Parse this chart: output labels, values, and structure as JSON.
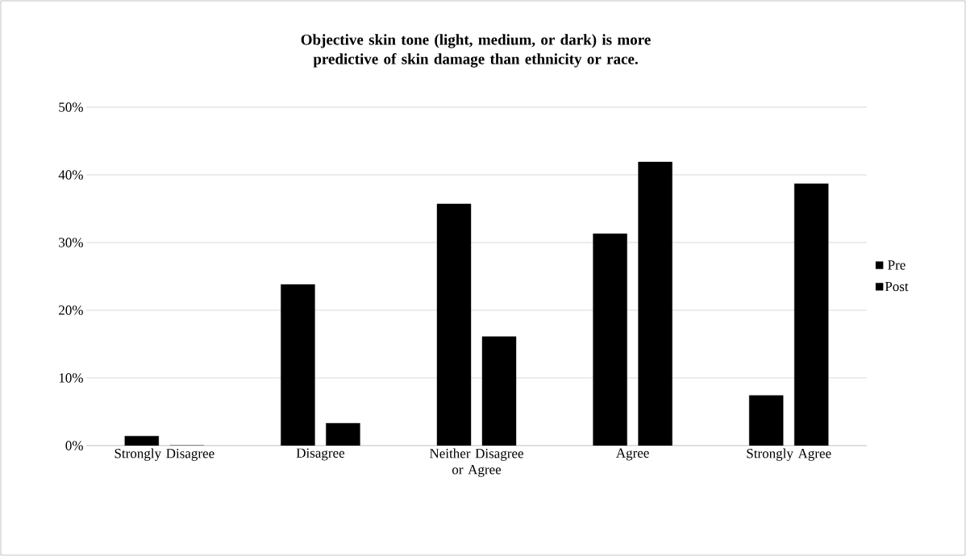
{
  "chart_data": {
    "type": "bar",
    "title": "Objective skin tone (light, medium, or dark) is more predictive of skin damage than ethnicity or race.",
    "categories": [
      "Strongly Disagree",
      "Disagree",
      "Neither Disagree or Agree",
      "Agree",
      "Strongly Agree"
    ],
    "series": [
      {
        "name": "Pre",
        "color": "#000000",
        "values": [
          1.4,
          23.8,
          35.7,
          31.3,
          7.4
        ]
      },
      {
        "name": "Post",
        "color": "#000000",
        "values": [
          0,
          3.3,
          16.1,
          41.9,
          38.7
        ]
      }
    ],
    "ylim": [
      0,
      50
    ],
    "yticks": [
      {
        "value": 0,
        "label": "0%"
      },
      {
        "value": 10,
        "label": "10%"
      },
      {
        "value": 20,
        "label": "20%"
      },
      {
        "value": 30,
        "label": "30%"
      },
      {
        "value": 40,
        "label": "40%"
      },
      {
        "value": 50,
        "label": "50%"
      }
    ],
    "grid": "y",
    "legend": "right"
  }
}
